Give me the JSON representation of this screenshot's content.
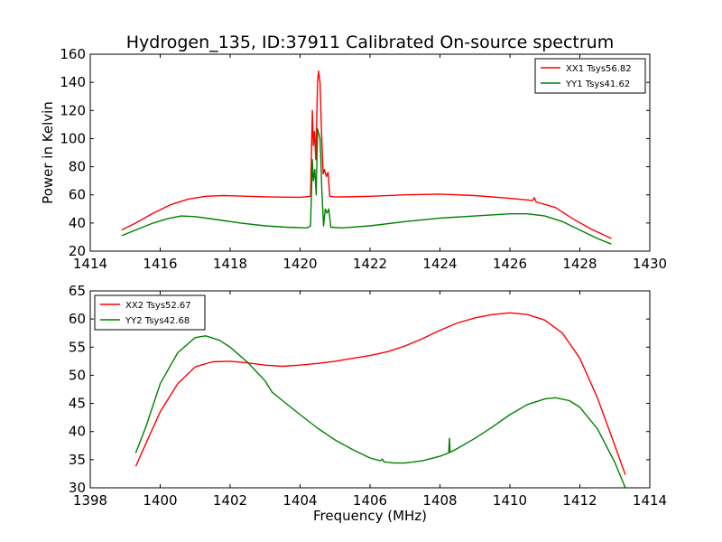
{
  "figure": {
    "title": "Hydrogen_135, ID:37911 Calibrated On-source spectrum"
  },
  "chart_data": [
    {
      "type": "line",
      "title": "",
      "xlabel": "",
      "ylabel": "Power in Kelvin",
      "xlim": [
        1414,
        1430
      ],
      "ylim": [
        20,
        160
      ],
      "xticks": [
        "1414",
        "1416",
        "1418",
        "1420",
        "1422",
        "1424",
        "1426",
        "1428",
        "1430"
      ],
      "yticks": [
        "20",
        "40",
        "60",
        "80",
        "100",
        "120",
        "140",
        "160"
      ],
      "grid": false,
      "legend_position": "top-right",
      "series": [
        {
          "name": "XX1 Tsys56.82",
          "color": "#ff0000",
          "points": [
            [
              1414.9,
              35
            ],
            [
              1415.3,
              40
            ],
            [
              1415.8,
              47
            ],
            [
              1416.3,
              53
            ],
            [
              1416.8,
              57
            ],
            [
              1417.3,
              59
            ],
            [
              1417.8,
              59.5
            ],
            [
              1418.5,
              59
            ],
            [
              1419.2,
              58.5
            ],
            [
              1420.0,
              58.3
            ],
            [
              1420.3,
              59
            ],
            [
              1420.35,
              120
            ],
            [
              1420.38,
              95
            ],
            [
              1420.41,
              105
            ],
            [
              1420.45,
              85
            ],
            [
              1420.5,
              140
            ],
            [
              1420.53,
              148
            ],
            [
              1420.57,
              140
            ],
            [
              1420.62,
              100
            ],
            [
              1420.66,
              75
            ],
            [
              1420.7,
              78
            ],
            [
              1420.75,
              73
            ],
            [
              1420.8,
              76
            ],
            [
              1420.85,
              59
            ],
            [
              1421.0,
              58.5
            ],
            [
              1422.0,
              59
            ],
            [
              1423.0,
              60
            ],
            [
              1424.0,
              60.5
            ],
            [
              1425.0,
              59.5
            ],
            [
              1426.0,
              57.5
            ],
            [
              1426.65,
              56
            ],
            [
              1426.7,
              58
            ],
            [
              1426.75,
              55
            ],
            [
              1427.3,
              51
            ],
            [
              1427.8,
              43
            ],
            [
              1428.3,
              36
            ],
            [
              1428.9,
              29
            ]
          ]
        },
        {
          "name": "YY1 Tsys41.62",
          "color": "#008000",
          "points": [
            [
              1414.9,
              31
            ],
            [
              1415.3,
              35
            ],
            [
              1415.8,
              40
            ],
            [
              1416.2,
              43
            ],
            [
              1416.6,
              45
            ],
            [
              1417.0,
              44.5
            ],
            [
              1417.6,
              42.5
            ],
            [
              1418.3,
              40
            ],
            [
              1419.0,
              38
            ],
            [
              1419.6,
              37
            ],
            [
              1420.2,
              36.5
            ],
            [
              1420.3,
              38
            ],
            [
              1420.35,
              85
            ],
            [
              1420.38,
              70
            ],
            [
              1420.42,
              78
            ],
            [
              1420.46,
              60
            ],
            [
              1420.5,
              107
            ],
            [
              1420.53,
              104
            ],
            [
              1420.57,
              100
            ],
            [
              1420.6,
              82
            ],
            [
              1420.62,
              65
            ],
            [
              1420.67,
              38
            ],
            [
              1420.72,
              50
            ],
            [
              1420.77,
              47
            ],
            [
              1420.82,
              50
            ],
            [
              1420.88,
              37
            ],
            [
              1421.2,
              36.5
            ],
            [
              1422.0,
              38
            ],
            [
              1423.0,
              41
            ],
            [
              1424.0,
              43.5
            ],
            [
              1425.0,
              45
            ],
            [
              1426.0,
              46.5
            ],
            [
              1426.5,
              46.5
            ],
            [
              1427.0,
              45
            ],
            [
              1427.5,
              41
            ],
            [
              1428.0,
              35
            ],
            [
              1428.5,
              29
            ],
            [
              1428.9,
              25
            ]
          ]
        }
      ]
    },
    {
      "type": "line",
      "title": "",
      "xlabel": "Frequency (MHz)",
      "ylabel": "",
      "xlim": [
        1398,
        1414
      ],
      "ylim": [
        30,
        65
      ],
      "xticks": [
        "1398",
        "1400",
        "1402",
        "1404",
        "1406",
        "1408",
        "1410",
        "1412",
        "1414"
      ],
      "yticks": [
        "30",
        "35",
        "40",
        "45",
        "50",
        "55",
        "60",
        "65"
      ],
      "grid": false,
      "legend_position": "top-left",
      "series": [
        {
          "name": "XX2 Tsys52.67",
          "color": "#ff0000",
          "points": [
            [
              1399.3,
              33.8
            ],
            [
              1399.6,
              38
            ],
            [
              1400.0,
              43.5
            ],
            [
              1400.5,
              48.5
            ],
            [
              1401.0,
              51.5
            ],
            [
              1401.5,
              52.4
            ],
            [
              1402.0,
              52.5
            ],
            [
              1402.5,
              52.2
            ],
            [
              1403.0,
              51.8
            ],
            [
              1403.5,
              51.6
            ],
            [
              1404.0,
              51.8
            ],
            [
              1404.5,
              52.1
            ],
            [
              1405.0,
              52.5
            ],
            [
              1405.5,
              53
            ],
            [
              1406.0,
              53.5
            ],
            [
              1406.5,
              54.2
            ],
            [
              1407.0,
              55.2
            ],
            [
              1407.5,
              56.5
            ],
            [
              1408.0,
              58
            ],
            [
              1408.5,
              59.3
            ],
            [
              1409.0,
              60.2
            ],
            [
              1409.5,
              60.8
            ],
            [
              1410.0,
              61.1
            ],
            [
              1410.5,
              60.8
            ],
            [
              1411.0,
              59.8
            ],
            [
              1411.5,
              57.5
            ],
            [
              1412.0,
              53
            ],
            [
              1412.5,
              46
            ],
            [
              1413.0,
              37.5
            ],
            [
              1413.3,
              32.3
            ]
          ]
        },
        {
          "name": "YY2 Tsys42.68",
          "color": "#008000",
          "points": [
            [
              1399.3,
              36.2
            ],
            [
              1399.6,
              41
            ],
            [
              1400.0,
              48.5
            ],
            [
              1400.5,
              54
            ],
            [
              1401.0,
              56.7
            ],
            [
              1401.3,
              57
            ],
            [
              1401.7,
              56.2
            ],
            [
              1402.0,
              55
            ],
            [
              1402.5,
              52.3
            ],
            [
              1403.0,
              49
            ],
            [
              1403.15,
              47.5
            ],
            [
              1403.2,
              47
            ],
            [
              1403.5,
              45.5
            ],
            [
              1404.0,
              43
            ],
            [
              1404.5,
              40.6
            ],
            [
              1405.0,
              38.5
            ],
            [
              1405.5,
              36.8
            ],
            [
              1406.0,
              35.3
            ],
            [
              1406.3,
              34.8
            ],
            [
              1406.35,
              35.1
            ],
            [
              1406.4,
              34.6
            ],
            [
              1406.7,
              34.4
            ],
            [
              1407.0,
              34.4
            ],
            [
              1407.5,
              34.8
            ],
            [
              1408.0,
              35.6
            ],
            [
              1408.25,
              36.2
            ],
            [
              1408.27,
              38.8
            ],
            [
              1408.29,
              36.3
            ],
            [
              1408.5,
              37
            ],
            [
              1409.0,
              38.8
            ],
            [
              1409.5,
              40.8
            ],
            [
              1410.0,
              43
            ],
            [
              1410.5,
              44.8
            ],
            [
              1411.0,
              45.8
            ],
            [
              1411.3,
              46
            ],
            [
              1411.7,
              45.5
            ],
            [
              1412.0,
              44.3
            ],
            [
              1412.5,
              40.5
            ],
            [
              1413.0,
              34.5
            ],
            [
              1413.3,
              30
            ]
          ]
        }
      ]
    }
  ]
}
